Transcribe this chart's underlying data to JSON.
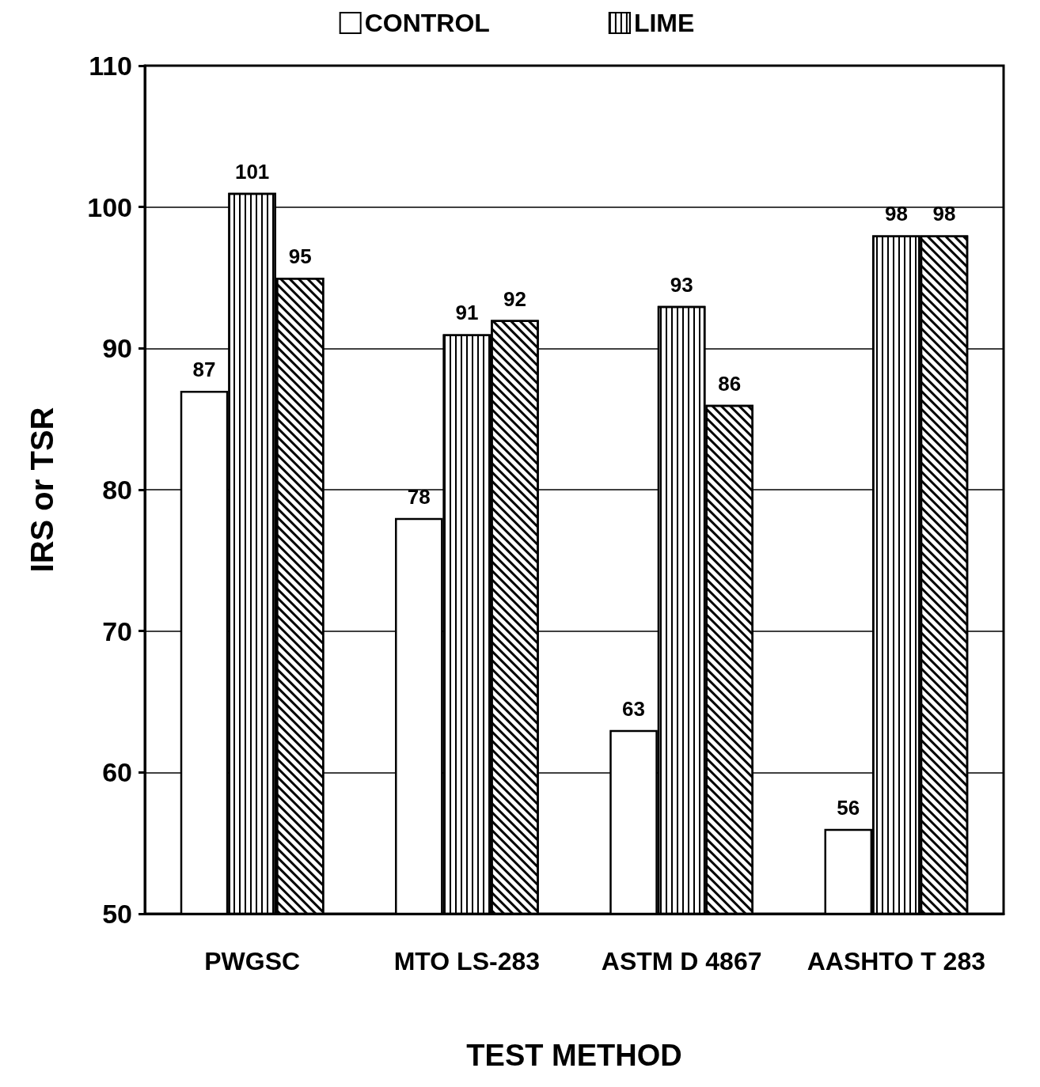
{
  "chart_data": {
    "type": "bar",
    "xlabel": "TEST METHOD",
    "ylabel": "IRS or TSR",
    "categories": [
      "PWGSC",
      "MTO LS-283",
      "ASTM D 4867",
      "AASHTO T 283"
    ],
    "series": [
      {
        "name": "CONTROL",
        "color": "#ffffff",
        "values": [
          87,
          78,
          63,
          56
        ]
      },
      {
        "name": "LIME",
        "color": "#ffffff",
        "values": [
          101,
          91,
          93,
          98
        ]
      },
      {
        "color": "#ffffff",
        "values": [
          95,
          92,
          86,
          98
        ]
      }
    ],
    "ylim": [
      50,
      110
    ],
    "yticks": [
      50,
      60,
      70,
      80,
      90,
      100,
      110
    ],
    "grid": "y",
    "legend": "top",
    "data_labels": true
  }
}
